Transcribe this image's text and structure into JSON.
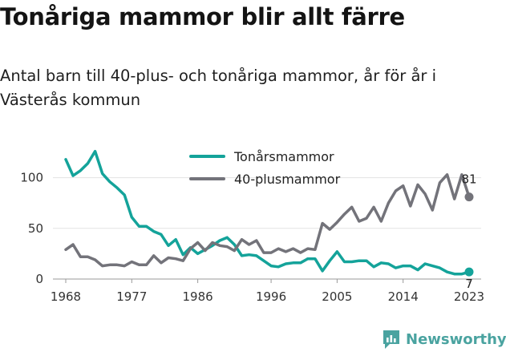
{
  "title": "Tonåriga mammor blir allt färre",
  "subtitle": "Antal barn till 40-plus- och tonåriga mammor, år för år i Västerås kommun",
  "brand": {
    "name": "Newsworthy",
    "icon": "newsworthy-logo-icon"
  },
  "colors": {
    "teen": "#14a39a",
    "plus40": "#73737a",
    "grid": "#e3e3e3"
  },
  "chart_data": {
    "type": "line",
    "title": "Tonåriga mammor blir allt färre",
    "subtitle": "Antal barn till 40-plus- och tonåriga mammor, år för år i Västerås kommun",
    "xlabel": "",
    "ylabel": "",
    "xlim": [
      1968,
      2023
    ],
    "ylim": [
      0,
      125
    ],
    "yticks": [
      0,
      50,
      100
    ],
    "xticks": [
      1968,
      1977,
      1986,
      1996,
      2005,
      2014,
      2023
    ],
    "grid": true,
    "legend": "top-center",
    "x": [
      1968,
      1969,
      1970,
      1971,
      1972,
      1973,
      1974,
      1975,
      1976,
      1977,
      1978,
      1979,
      1980,
      1981,
      1982,
      1983,
      1984,
      1985,
      1986,
      1987,
      1988,
      1989,
      1990,
      1991,
      1992,
      1993,
      1994,
      1995,
      1996,
      1997,
      1998,
      1999,
      2000,
      2001,
      2002,
      2003,
      2004,
      2005,
      2006,
      2007,
      2008,
      2009,
      2010,
      2011,
      2012,
      2013,
      2014,
      2015,
      2016,
      2017,
      2018,
      2019,
      2020,
      2021,
      2022,
      2023
    ],
    "series": [
      {
        "name": "Tonårsmammor",
        "color": "#14a39a",
        "values": [
          118,
          102,
          107,
          114,
          126,
          104,
          96,
          90,
          83,
          61,
          52,
          52,
          47,
          44,
          33,
          39,
          24,
          31,
          25,
          29,
          33,
          38,
          41,
          34,
          23,
          24,
          23,
          18,
          13,
          12,
          15,
          16,
          16,
          20,
          20,
          8,
          18,
          27,
          17,
          17,
          18,
          18,
          12,
          16,
          15,
          11,
          13,
          13,
          9,
          15,
          13,
          11,
          7,
          5,
          5,
          7
        ],
        "end_label": "7"
      },
      {
        "name": "40-plusmammor",
        "color": "#73737a",
        "values": [
          29,
          34,
          22,
          22,
          19,
          13,
          14,
          14,
          13,
          17,
          14,
          14,
          23,
          16,
          21,
          20,
          18,
          30,
          36,
          28,
          36,
          33,
          32,
          28,
          39,
          34,
          38,
          26,
          26,
          30,
          27,
          30,
          26,
          30,
          29,
          55,
          49,
          56,
          64,
          71,
          57,
          60,
          71,
          57,
          75,
          87,
          92,
          72,
          93,
          84,
          68,
          95,
          103,
          79,
          103,
          81
        ],
        "end_label": "81"
      }
    ]
  }
}
